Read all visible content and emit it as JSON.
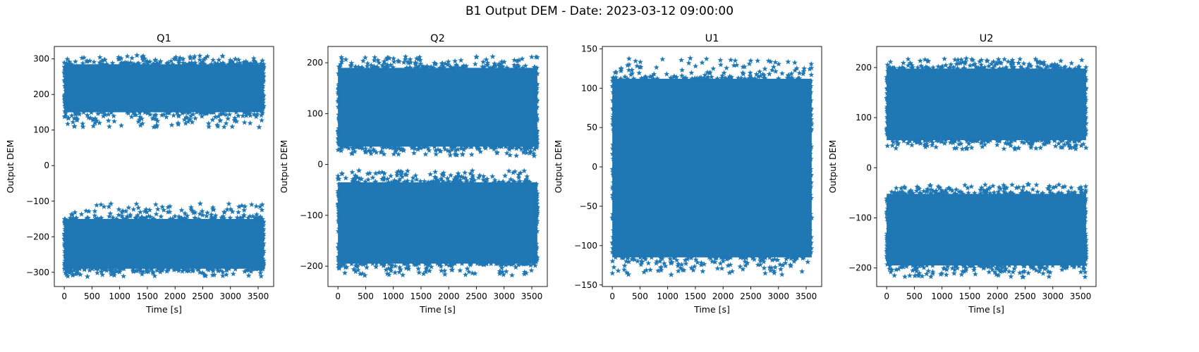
{
  "figure": {
    "suptitle": "B1 Output DEM - Date: 2023-03-12 09:00:00"
  },
  "chart_data": [
    {
      "type": "scatter",
      "title": "Q1",
      "xlabel": "Time [s]",
      "ylabel": "Output DEM",
      "marker": "star",
      "color": "#1f77b4",
      "grid": false,
      "xlim": [
        -180,
        3780
      ],
      "ylim": [
        -340,
        335
      ],
      "xticks": [
        0,
        500,
        1000,
        1500,
        2000,
        2500,
        3000,
        3500
      ],
      "yticks": [
        -300,
        -200,
        -100,
        0,
        100,
        200,
        300
      ],
      "x_range": [
        0,
        3600
      ],
      "point_clusters": [
        {
          "core_range": [
            150,
            285
          ],
          "extreme_range": [
            108,
            310
          ]
        },
        {
          "core_range": [
            -290,
            -150
          ],
          "extreme_range": [
            -312,
            -107
          ]
        }
      ]
    },
    {
      "type": "scatter",
      "title": "Q2",
      "xlabel": "Time [s]",
      "ylabel": "Output DEM",
      "marker": "star",
      "color": "#1f77b4",
      "grid": false,
      "xlim": [
        -180,
        3780
      ],
      "ylim": [
        -240,
        232
      ],
      "xticks": [
        0,
        500,
        1000,
        1500,
        2000,
        2500,
        3000,
        3500
      ],
      "yticks": [
        -200,
        -100,
        0,
        100,
        200
      ],
      "x_range": [
        0,
        3600
      ],
      "point_clusters": [
        {
          "core_range": [
            35,
            190
          ],
          "extreme_range": [
            17,
            212
          ]
        },
        {
          "core_range": [
            -195,
            -35
          ],
          "extreme_range": [
            -218,
            -12
          ]
        }
      ]
    },
    {
      "type": "scatter",
      "title": "U1",
      "xlabel": "Time [s]",
      "ylabel": "Output DEM",
      "marker": "star",
      "color": "#1f77b4",
      "grid": false,
      "xlim": [
        -180,
        3780
      ],
      "ylim": [
        -152,
        153
      ],
      "xticks": [
        0,
        500,
        1000,
        1500,
        2000,
        2500,
        3000,
        3500
      ],
      "yticks": [
        -150,
        -100,
        -50,
        0,
        50,
        100,
        150
      ],
      "x_range": [
        0,
        3600
      ],
      "point_clusters": [
        {
          "core_range": [
            -115,
            112
          ],
          "extreme_range": [
            -137,
            138
          ]
        }
      ]
    },
    {
      "type": "scatter",
      "title": "U2",
      "xlabel": "Time [s]",
      "ylabel": "Output DEM",
      "marker": "star",
      "color": "#1f77b4",
      "grid": false,
      "xlim": [
        -180,
        3780
      ],
      "ylim": [
        -237,
        242
      ],
      "xticks": [
        0,
        500,
        1000,
        1500,
        2000,
        2500,
        3000,
        3500
      ],
      "yticks": [
        -200,
        -100,
        0,
        100,
        200
      ],
      "x_range": [
        0,
        3600
      ],
      "point_clusters": [
        {
          "core_range": [
            55,
            198
          ],
          "extreme_range": [
            37,
            218
          ]
        },
        {
          "core_range": [
            -195,
            -52
          ],
          "extreme_range": [
            -218,
            -33
          ]
        }
      ]
    }
  ]
}
